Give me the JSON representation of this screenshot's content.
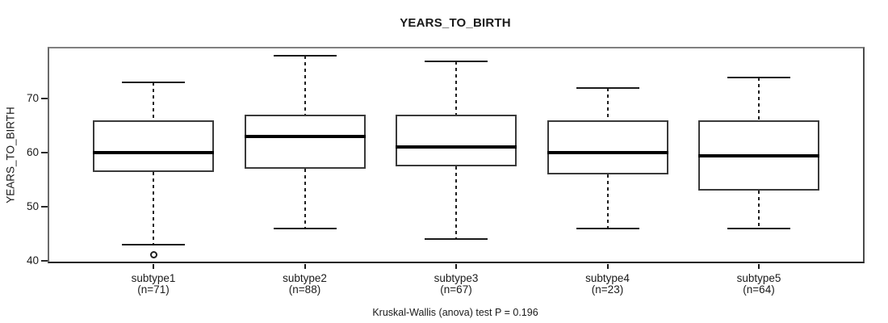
{
  "title": "YEARS_TO_BIRTH",
  "caption": "Kruskal-Wallis (anova) test P = 0.196",
  "colors": {
    "foreground": "#000000",
    "box_fill": "#ffffff",
    "frame_gray": "#808080",
    "background": "#ffffff"
  },
  "chart_data": {
    "type": "boxplot",
    "title": "YEARS_TO_BIRTH",
    "xlabel": "",
    "ylabel": "YEARS_TO_BIRTH",
    "ylim": [
      39.5,
      79.5
    ],
    "yticks": [
      40,
      50,
      60,
      70
    ],
    "grid": false,
    "legend": false,
    "footnote": "Kruskal-Wallis (anova) test P = 0.196",
    "groups": [
      {
        "label": "subtype1",
        "n_label": "(n=71)",
        "n": 71,
        "whisker_low": 43,
        "q1": 56.5,
        "median": 60,
        "q3": 66,
        "whisker_high": 73,
        "outliers": [
          41
        ]
      },
      {
        "label": "subtype2",
        "n_label": "(n=88)",
        "n": 88,
        "whisker_low": 46,
        "q1": 57,
        "median": 63,
        "q3": 67,
        "whisker_high": 78,
        "outliers": []
      },
      {
        "label": "subtype3",
        "n_label": "(n=67)",
        "n": 67,
        "whisker_low": 44,
        "q1": 57.5,
        "median": 61,
        "q3": 67,
        "whisker_high": 77,
        "outliers": []
      },
      {
        "label": "subtype4",
        "n_label": "(n=23)",
        "n": 23,
        "whisker_low": 46,
        "q1": 56,
        "median": 60,
        "q3": 66,
        "whisker_high": 72,
        "outliers": []
      },
      {
        "label": "subtype5",
        "n_label": "(n=64)",
        "n": 64,
        "whisker_low": 46,
        "q1": 53,
        "median": 59.5,
        "q3": 66,
        "whisker_high": 74,
        "outliers": []
      }
    ]
  }
}
